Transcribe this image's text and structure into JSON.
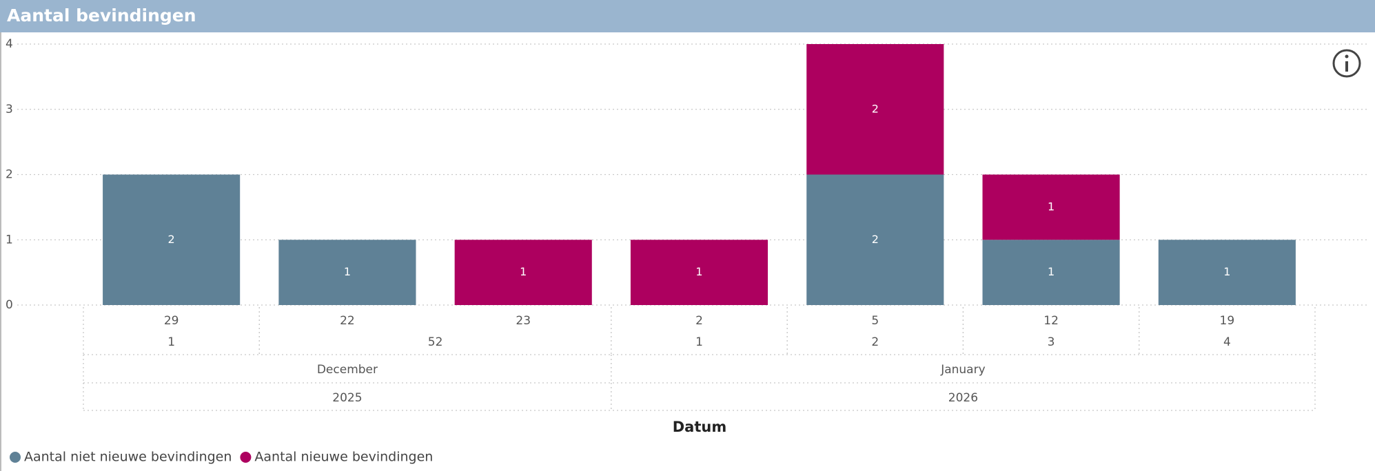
{
  "chart_data": {
    "type": "stacked_bar",
    "title": "Aantal bevindingen",
    "x_label": "Datum",
    "categories": [
      "29",
      "22",
      "23",
      "2",
      "5",
      "12",
      "19"
    ],
    "weeks": [
      "1",
      "52",
      "52",
      "1",
      "2",
      "3",
      "4"
    ],
    "months": [
      "December",
      "December",
      "December",
      "January",
      "January",
      "January",
      "January"
    ],
    "years": [
      "2025",
      "2025",
      "2025",
      "2026",
      "2026",
      "2026",
      "2026"
    ],
    "series": [
      {
        "name": "Aantal niet nieuwe bevindingen",
        "color": "#5f8196",
        "values": [
          2,
          1,
          null,
          null,
          2,
          1,
          1
        ]
      },
      {
        "name": "Aantal nieuwe bevindingen",
        "color": "#ad005f",
        "values": [
          null,
          null,
          1,
          1,
          2,
          1,
          null
        ]
      }
    ],
    "ylim": [
      0,
      4
    ],
    "yticks": [
      0,
      1,
      2,
      3,
      4
    ],
    "grid": true
  }
}
